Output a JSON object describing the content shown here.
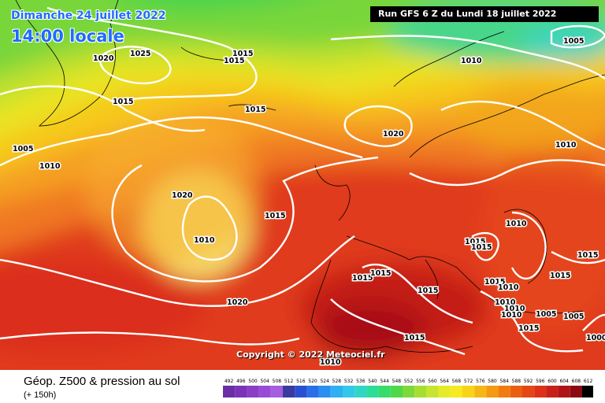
{
  "header": {
    "date": "Dimanche 24 juillet 2022",
    "time": "14:00 locale",
    "run": "Run GFS 6 Z du Lundi 18 juillet 2022"
  },
  "copyright": "Copyright © 2022 Meteociel.fr",
  "footer": {
    "field": "Géop. Z500 & pression au sol",
    "lead": "(+ 150h)"
  },
  "isobar_labels": [
    "1015",
    "1025",
    "1020",
    "1015",
    "1015",
    "1010",
    "1005",
    "1005",
    "1010",
    "1015",
    "1015",
    "1020",
    "1010",
    "1015",
    "1010",
    "1020",
    "1015",
    "1015",
    "1015",
    "1010",
    "1015",
    "1015",
    "1015",
    "1015",
    "1015",
    "1010",
    "1010",
    "1010",
    "1010",
    "1005",
    "1005",
    "1000",
    "1020",
    "1015",
    "1010"
  ],
  "scale": {
    "values": [
      "492",
      "496",
      "500",
      "504",
      "508",
      "512",
      "516",
      "520",
      "524",
      "528",
      "532",
      "536",
      "540",
      "544",
      "548",
      "552",
      "556",
      "560",
      "564",
      "568",
      "572",
      "576",
      "580",
      "584",
      "588",
      "592",
      "596",
      "600",
      "604",
      "608",
      "612"
    ],
    "colors": [
      "#6b2ea6",
      "#7b33b8",
      "#8a3fc6",
      "#9a4bd6",
      "#a65ee0",
      "#3a3aa0",
      "#2a4fd0",
      "#2a6fe8",
      "#2a8ff0",
      "#2fb0f2",
      "#33c8e8",
      "#2fd6c6",
      "#2edc9a",
      "#38dc6a",
      "#4fd84a",
      "#7fd83a",
      "#a6de30",
      "#c8e430",
      "#e6ea28",
      "#f6ea20",
      "#f8d418",
      "#f6b614",
      "#f49a12",
      "#f07c10",
      "#ea5e12",
      "#e44614",
      "#dc3018",
      "#c82018",
      "#b01418",
      "#8a0c12",
      "#000000"
    ]
  }
}
